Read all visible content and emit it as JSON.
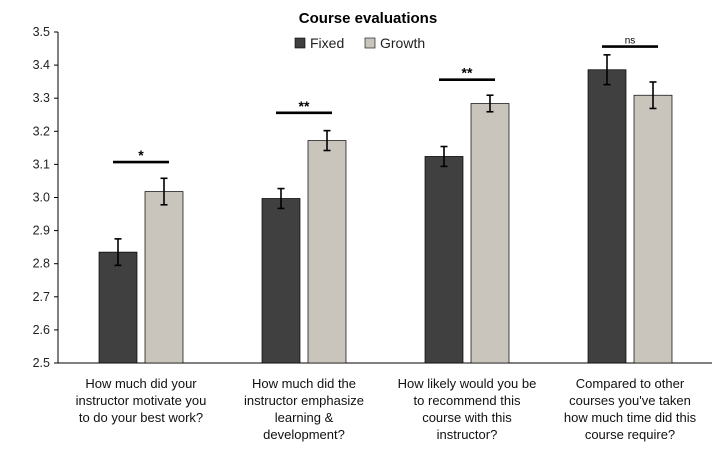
{
  "chart_data": {
    "type": "bar",
    "title": "Course evaluations",
    "xlabel": "",
    "ylabel": "",
    "ylim": [
      2.5,
      3.5
    ],
    "yticks": [
      "2.5",
      "2.6",
      "2.7",
      "2.8",
      "2.9",
      "3.0",
      "3.1",
      "3.2",
      "3.3",
      "3.4",
      "3.5"
    ],
    "legend": {
      "position": "top-center",
      "entries": [
        "Fixed",
        "Growth"
      ]
    },
    "colors": {
      "Fixed": "#404040",
      "Growth": "#c9c5bd"
    },
    "categories": [
      [
        "How much did your",
        "instructor motivate you",
        "to do your best work?"
      ],
      [
        "How much did the",
        "instructor emphasize",
        "learning &",
        "development?"
      ],
      [
        "How likely would you be",
        "to recommend this",
        "course with this",
        "instructor?"
      ],
      [
        "Compared to other",
        "courses you've taken",
        "how much time did this",
        "course require?"
      ]
    ],
    "series": [
      {
        "name": "Fixed",
        "values": [
          2.835,
          2.997,
          3.124,
          3.386
        ],
        "errors": [
          0.04,
          0.03,
          0.03,
          0.045
        ]
      },
      {
        "name": "Growth",
        "values": [
          3.018,
          3.172,
          3.284,
          3.309
        ],
        "errors": [
          0.04,
          0.03,
          0.025,
          0.04
        ]
      }
    ],
    "significance": [
      {
        "label": "*",
        "y": 3.107
      },
      {
        "label": "**",
        "y": 3.256
      },
      {
        "label": "**",
        "y": 3.356
      },
      {
        "label": "ns",
        "y": 3.456
      }
    ]
  }
}
